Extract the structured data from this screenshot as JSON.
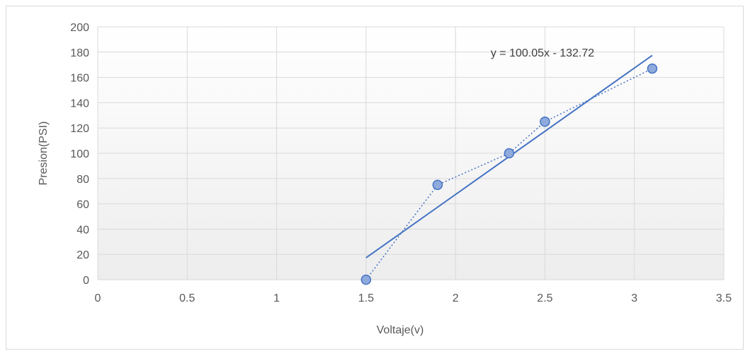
{
  "chart_data": {
    "type": "scatter",
    "title": "",
    "xlabel": "Voltaje(v)",
    "ylabel": "Presion(PSI)",
    "xlim": [
      0,
      3.5
    ],
    "ylim": [
      0,
      200
    ],
    "x_ticks": [
      "0",
      "0.5",
      "1",
      "1.5",
      "2",
      "2.5",
      "3",
      "3.5"
    ],
    "y_ticks": [
      "0",
      "20",
      "40",
      "60",
      "80",
      "100",
      "120",
      "140",
      "160",
      "180",
      "200"
    ],
    "grid": true,
    "legend": "none",
    "series": [
      {
        "x": [
          1.5,
          1.9,
          2.3,
          2.5,
          3.1
        ],
        "y": [
          0,
          75,
          100,
          125,
          167
        ],
        "style": "markers with dotted connecting line",
        "marker_color": "#8faadc",
        "line_color": "#4472c4"
      }
    ],
    "trendline": {
      "type": "linear",
      "slope": 100.05,
      "intercept": -132.72,
      "x_range": [
        1.5,
        3.1
      ],
      "equation_label": "y = 100.05x - 132.72",
      "color": "#4472c4"
    }
  }
}
